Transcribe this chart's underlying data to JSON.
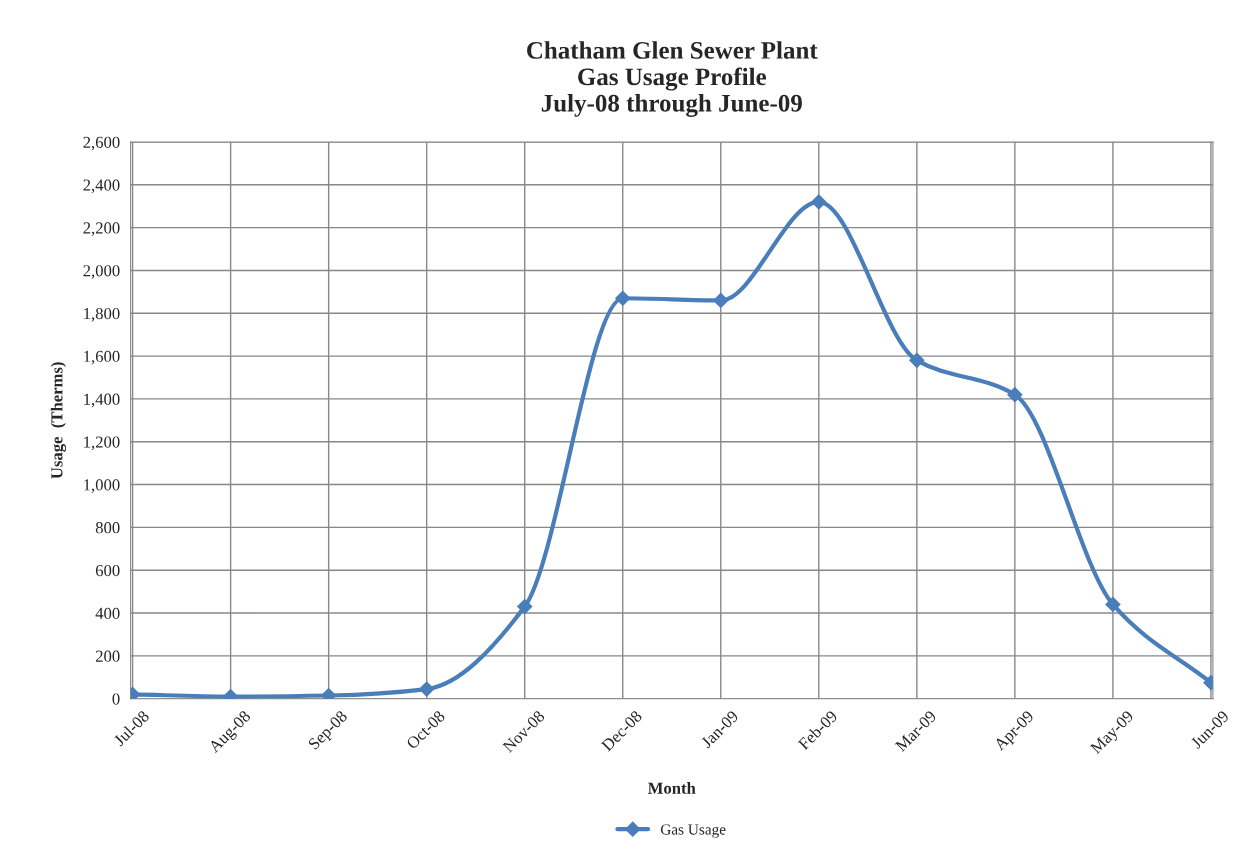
{
  "chart_data": {
    "type": "line",
    "title": "Chatham Glen Sewer Plant\nGas Usage Profile\nJuly-08 through June-09",
    "xlabel": "Month",
    "ylabel": "Usage  (Therms)",
    "categories": [
      "Jul-08",
      "Aug-08",
      "Sep-08",
      "Oct-08",
      "Nov-08",
      "Dec-08",
      "Jan-09",
      "Feb-09",
      "Mar-09",
      "Apr-09",
      "May-09",
      "Jun-09"
    ],
    "series": [
      {
        "name": "Gas Usage",
        "color": "#4a7ebb",
        "values": [
          20,
          10,
          15,
          45,
          430,
          1870,
          1860,
          2320,
          1580,
          1420,
          440,
          75
        ]
      }
    ],
    "ylim": [
      0,
      2600
    ],
    "yticks": [
      0,
      200,
      400,
      600,
      800,
      {
        "value": 1000,
        "label": "1,000"
      },
      {
        "value": 1200,
        "label": "1,200"
      },
      {
        "value": 1400,
        "label": "1,400"
      },
      {
        "value": 1600,
        "label": "1,600"
      },
      {
        "value": 1800,
        "label": "1,800"
      },
      {
        "value": 2000,
        "label": "2,000"
      },
      {
        "value": 2200,
        "label": "2,200"
      },
      {
        "value": 2400,
        "label": "2,400"
      },
      {
        "value": 2600,
        "label": "2,600"
      }
    ],
    "grid": true,
    "legend": "bottom",
    "marker": "diamond",
    "line_style": "solid"
  }
}
